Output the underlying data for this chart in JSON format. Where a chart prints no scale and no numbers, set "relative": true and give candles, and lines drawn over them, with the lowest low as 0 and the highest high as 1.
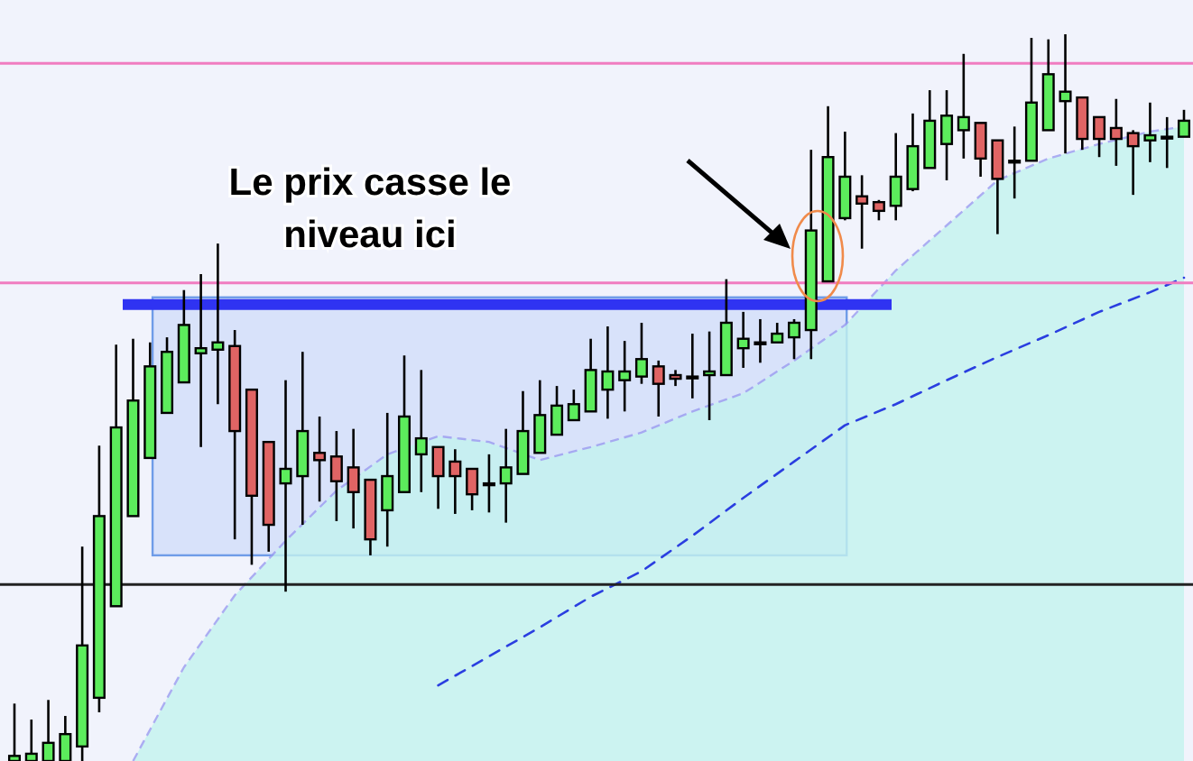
{
  "chart_data": {
    "type": "candlestick",
    "relative": true,
    "annotations": [
      "Le prix casse le niveau ici"
    ],
    "categories": [
      null,
      null,
      null,
      null,
      null,
      null,
      null,
      null,
      null,
      null,
      null,
      null,
      null,
      null,
      null,
      null,
      null,
      null,
      null,
      null,
      null,
      null,
      null,
      null,
      null,
      null,
      null,
      null,
      null,
      null,
      null,
      null,
      null,
      null,
      null,
      null,
      null,
      null,
      null,
      null,
      null,
      null,
      null,
      null,
      null,
      null,
      null,
      null,
      null,
      null,
      null,
      null,
      null,
      null,
      null,
      null,
      null,
      null,
      null,
      null,
      null,
      null,
      null,
      null,
      null,
      null,
      null,
      null,
      null,
      null
    ],
    "ohlc": [
      [
        0,
        0.079,
        0,
        0.007
      ],
      [
        0,
        0.057,
        0,
        0.01
      ],
      [
        0,
        0.084,
        0,
        0.025
      ],
      [
        0,
        0.062,
        0,
        0.037
      ],
      [
        0.02,
        0.295,
        0,
        0.159
      ],
      [
        0.087,
        0.434,
        0.067,
        0.337
      ],
      [
        0.213,
        0.573,
        0.213,
        0.459
      ],
      [
        0.337,
        0.581,
        0.337,
        0.496
      ],
      [
        0.417,
        0.576,
        0.417,
        0.543
      ],
      [
        0.479,
        0.583,
        0.479,
        0.563
      ],
      [
        0.521,
        0.648,
        0.521,
        0.6
      ],
      [
        0.561,
        0.67,
        0.432,
        0.568
      ],
      [
        0.566,
        0.712,
        0.491,
        0.576
      ],
      [
        0.571,
        0.593,
        0.305,
        0.454
      ],
      [
        0.511,
        0.511,
        0.27,
        0.365
      ],
      [
        0.439,
        0.439,
        0.288,
        0.325
      ],
      [
        0.382,
        0.524,
        0.233,
        0.402
      ],
      [
        0.392,
        0.563,
        0.325,
        0.454
      ],
      [
        0.424,
        0.474,
        0.357,
        0.414
      ],
      [
        0.419,
        0.454,
        0.33,
        0.385
      ],
      [
        0.404,
        0.457,
        0.32,
        0.37
      ],
      [
        0.387,
        0.387,
        0.283,
        0.305
      ],
      [
        0.345,
        0.479,
        0.295,
        0.392
      ],
      [
        0.37,
        0.558,
        0.37,
        0.474
      ],
      [
        0.422,
        0.538,
        0.37,
        0.444
      ],
      [
        0.432,
        0.432,
        0.347,
        0.392
      ],
      [
        0.412,
        0.429,
        0.34,
        0.392
      ],
      [
        0.402,
        0.402,
        0.345,
        0.367
      ],
      [
        0.382,
        0.422,
        0.342,
        0.382
      ],
      [
        0.382,
        0.457,
        0.328,
        0.404
      ],
      [
        0.395,
        0.509,
        0.395,
        0.454
      ],
      [
        0.424,
        0.524,
        0.424,
        0.476
      ],
      [
        0.449,
        0.516,
        0.449,
        0.489
      ],
      [
        0.469,
        0.511,
        0.469,
        0.491
      ],
      [
        0.481,
        0.581,
        0.481,
        0.538
      ],
      [
        0.511,
        0.598,
        0.471,
        0.536
      ],
      [
        0.524,
        0.578,
        0.481,
        0.536
      ],
      [
        0.529,
        0.603,
        0.519,
        0.553
      ],
      [
        0.543,
        0.551,
        0.474,
        0.519
      ],
      [
        0.531,
        0.538,
        0.516,
        0.526
      ],
      [
        0.529,
        0.588,
        0.499,
        0.529
      ],
      [
        0.531,
        0.591,
        0.469,
        0.536
      ],
      [
        0.531,
        0.663,
        0.531,
        0.603
      ],
      [
        0.568,
        0.618,
        0.541,
        0.581
      ],
      [
        0.576,
        0.608,
        0.548,
        0.576
      ],
      [
        0.576,
        0.603,
        0.576,
        0.588
      ],
      [
        0.583,
        0.608,
        0.553,
        0.603
      ],
      [
        0.593,
        0.841,
        0.553,
        0.73
      ],
      [
        0.66,
        0.901,
        0.66,
        0.831
      ],
      [
        0.747,
        0.866,
        0.744,
        0.804
      ],
      [
        0.777,
        0.806,
        0.705,
        0.767
      ],
      [
        0.769,
        0.772,
        0.744,
        0.757
      ],
      [
        0.764,
        0.864,
        0.744,
        0.804
      ],
      [
        0.787,
        0.891,
        0.784,
        0.846
      ],
      [
        0.816,
        0.923,
        0.816,
        0.881
      ],
      [
        0.849,
        0.923,
        0.799,
        0.888
      ],
      [
        0.868,
        0.973,
        0.829,
        0.886
      ],
      [
        0.878,
        0.878,
        0.804,
        0.829
      ],
      [
        0.854,
        0.854,
        0.725,
        0.801
      ],
      [
        0.826,
        0.873,
        0.774,
        0.826
      ],
      [
        0.826,
        0.995,
        0.826,
        0.906
      ],
      [
        0.868,
        0.993,
        0.868,
        0.945
      ],
      [
        0.908,
        1,
        0.836,
        0.921
      ],
      [
        0.913,
        0.913,
        0.841,
        0.856
      ],
      [
        0.886,
        0.886,
        0.831,
        0.856
      ],
      [
        0.871,
        0.911,
        0.819,
        0.856
      ],
      [
        0.864,
        0.868,
        0.779,
        0.846
      ],
      [
        0.854,
        0.906,
        0.824,
        0.861
      ],
      [
        0.859,
        0.886,
        0.816,
        0.859
      ],
      [
        0.859,
        0.896,
        0.859,
        0.881
      ]
    ],
    "series": [
      {
        "type": "area",
        "color": "#c4f3ef",
        "values": [
          null,
          null,
          null,
          null,
          null,
          null,
          null,
          0,
          null,
          null,
          0.129,
          null,
          null,
          0.228,
          null,
          null,
          0.303,
          null,
          null,
          0.372,
          null,
          null,
          0.422,
          null,
          null,
          0.447,
          null,
          null,
          0.439,
          null,
          null,
          0.414,
          null,
          null,
          0.432,
          null,
          null,
          0.452,
          null,
          null,
          0.481,
          null,
          null,
          0.506,
          null,
          null,
          0.551,
          null,
          null,
          0.6,
          null,
          null,
          0.675,
          null,
          null,
          0.737,
          null,
          null,
          0.799,
          null,
          null,
          0.829,
          null,
          null,
          0.849,
          null,
          null,
          0.866,
          null,
          0.873
        ]
      },
      {
        "type": "line",
        "color": "#2a3ee0",
        "line_style": "dashed",
        "values": [
          null,
          null,
          null,
          null,
          null,
          null,
          null,
          null,
          null,
          null,
          null,
          null,
          null,
          null,
          null,
          null,
          null,
          null,
          null,
          null,
          null,
          null,
          null,
          null,
          null,
          0.104,
          null,
          null,
          0.144,
          null,
          null,
          0.184,
          null,
          null,
          0.226,
          null,
          null,
          0.261,
          null,
          null,
          0.31,
          null,
          null,
          0.362,
          null,
          null,
          0.412,
          null,
          null,
          0.462,
          null,
          null,
          0.491,
          null,
          null,
          0.524,
          null,
          null,
          0.556,
          null,
          null,
          0.586,
          null,
          null,
          0.618,
          null,
          null,
          0.645,
          null,
          0.665
        ]
      }
    ],
    "bands": [
      {
        "axis": "y",
        "from": 0.283,
        "to": 0.638,
        "color": "#d8e2fa"
      }
    ],
    "ref_lines": [
      {
        "axis": "y",
        "value": 0.96,
        "color": "#f07cc0"
      },
      {
        "axis": "y",
        "value": 0.658,
        "color": "#f07cc0"
      },
      {
        "axis": "y",
        "value": 0.243,
        "color": "#222222"
      },
      {
        "axis": "y",
        "value": 0.628,
        "color": "#2f33f2"
      }
    ]
  }
}
